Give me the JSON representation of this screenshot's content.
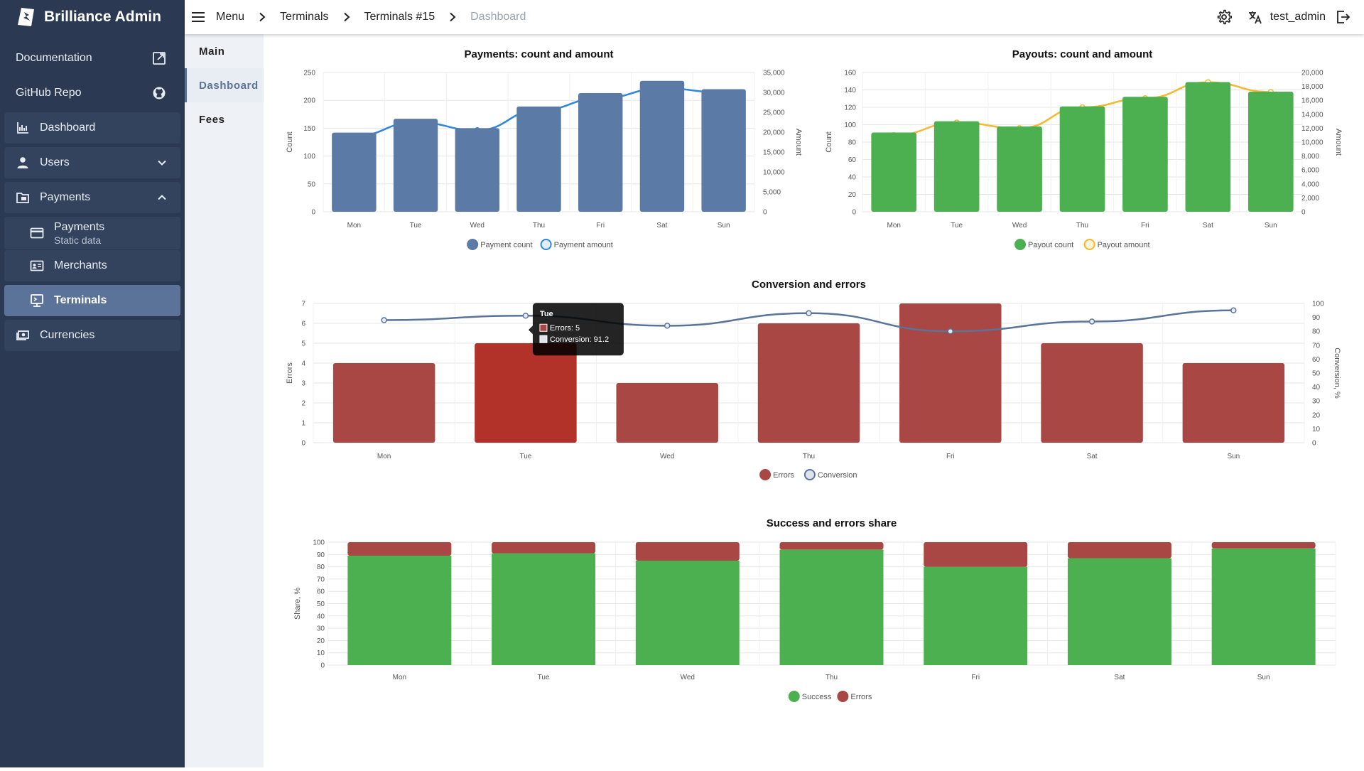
{
  "brand": {
    "name": "Brilliance Admin"
  },
  "sidebar": {
    "items": [
      {
        "label": "Documentation",
        "icon": "external-link-icon"
      },
      {
        "label": "GitHub Repo",
        "icon": "github-icon"
      },
      {
        "label": "Dashboard",
        "icon": "chart-icon"
      },
      {
        "label": "Users",
        "icon": "user-icon"
      },
      {
        "label": "Payments",
        "icon": "folder-icon"
      }
    ],
    "payments_sub": [
      {
        "label": "Payments",
        "sublabel": "Static data",
        "icon": "card-icon"
      },
      {
        "label": "Merchants",
        "icon": "id-card-icon"
      },
      {
        "label": "Terminals",
        "icon": "terminal-icon"
      }
    ],
    "currencies": {
      "label": "Currencies",
      "icon": "money-icon"
    }
  },
  "topbar": {
    "menu_label": "Menu",
    "crumbs": [
      "Terminals",
      "Terminals #15",
      "Dashboard"
    ],
    "user": "test_admin"
  },
  "subnav": {
    "items": [
      "Main",
      "Dashboard",
      "Fees"
    ],
    "active": "Dashboard"
  },
  "colors": {
    "blue_bar": "#5b7ba6",
    "blue_line": "#2e86de",
    "green": "#4caf50",
    "yellow": "#f5b82e",
    "red": "#a84743",
    "red_active": "#b23128",
    "line_conv": "#5a7398"
  },
  "chart_data": [
    {
      "id": "payments",
      "type": "bar",
      "title": "Payments: count and amount",
      "categories": [
        "Mon",
        "Tue",
        "Wed",
        "Thu",
        "Fri",
        "Sat",
        "Sun"
      ],
      "series": [
        {
          "name": "Payment count",
          "type": "bar",
          "axis": "left",
          "values": [
            142,
            167,
            150,
            189,
            213,
            235,
            220
          ]
        },
        {
          "name": "Payment amount",
          "type": "line",
          "axis": "right",
          "values": [
            19000,
            22500,
            20500,
            25500,
            28500,
            31000,
            30000
          ]
        }
      ],
      "ylabel": "Count",
      "ylim": [
        0,
        250
      ],
      "yticks": [
        0,
        50,
        100,
        150,
        200,
        250
      ],
      "y2label": "Amount",
      "y2lim": [
        0,
        35000
      ],
      "y2ticks": [
        0,
        5000,
        10000,
        15000,
        20000,
        25000,
        30000,
        35000
      ],
      "y2tick_labels": [
        "0",
        "5,000",
        "10,000",
        "15,000",
        "20,000",
        "25,000",
        "30,000",
        "35,000"
      ],
      "legend_position": "bottom"
    },
    {
      "id": "payouts",
      "type": "bar",
      "title": "Payouts: count and amount",
      "categories": [
        "Mon",
        "Tue",
        "Wed",
        "Thu",
        "Fri",
        "Sat",
        "Sun"
      ],
      "series": [
        {
          "name": "Payout count",
          "type": "bar",
          "axis": "left",
          "values": [
            91,
            104,
            98,
            121,
            132,
            149,
            138
          ]
        },
        {
          "name": "Payout amount",
          "type": "line",
          "axis": "right",
          "values": [
            11000,
            12800,
            12000,
            15000,
            16300,
            18600,
            17200
          ]
        }
      ],
      "ylabel": "Count",
      "ylim": [
        0,
        160
      ],
      "yticks": [
        0,
        20,
        40,
        60,
        80,
        100,
        120,
        140,
        160
      ],
      "y2label": "Amount",
      "y2lim": [
        0,
        20000
      ],
      "y2ticks": [
        0,
        2000,
        4000,
        6000,
        8000,
        10000,
        12000,
        14000,
        16000,
        18000,
        20000
      ],
      "y2tick_labels": [
        "0",
        "2,000",
        "4,000",
        "6,000",
        "8,000",
        "10,000",
        "12,000",
        "14,000",
        "16,000",
        "18,000",
        "20,000"
      ],
      "legend_position": "bottom"
    },
    {
      "id": "conversion",
      "type": "bar",
      "title": "Conversion and errors",
      "categories": [
        "Mon",
        "Tue",
        "Wed",
        "Thu",
        "Fri",
        "Sat",
        "Sun"
      ],
      "series": [
        {
          "name": "Errors",
          "type": "bar",
          "axis": "left",
          "values": [
            4,
            5,
            3,
            6,
            7,
            5,
            4
          ]
        },
        {
          "name": "Conversion",
          "type": "line",
          "axis": "right",
          "values": [
            88,
            91.2,
            84,
            93,
            80,
            87,
            95
          ]
        }
      ],
      "ylabel": "Errors",
      "ylim": [
        0,
        7
      ],
      "yticks": [
        0,
        1,
        2,
        3,
        4,
        5,
        6,
        7
      ],
      "y2label": "Conversion, %",
      "y2lim": [
        0,
        100
      ],
      "y2ticks": [
        0,
        10,
        20,
        30,
        40,
        50,
        60,
        70,
        80,
        90,
        100
      ],
      "legend_position": "bottom",
      "tooltip": {
        "category": "Tue",
        "lines": [
          "Errors: 5",
          "Conversion: 91.2"
        ]
      }
    },
    {
      "id": "share",
      "type": "bar",
      "stacked": true,
      "title": "Success and errors share",
      "categories": [
        "Mon",
        "Tue",
        "Wed",
        "Thu",
        "Fri",
        "Sat",
        "Sun"
      ],
      "series": [
        {
          "name": "Success",
          "values": [
            89,
            91,
            85,
            94,
            80,
            87,
            95
          ]
        },
        {
          "name": "Errors",
          "values": [
            11,
            9,
            15,
            6,
            20,
            13,
            5
          ]
        }
      ],
      "ylabel": "Share, %",
      "ylim": [
        0,
        100
      ],
      "yticks": [
        0,
        10,
        20,
        30,
        40,
        50,
        60,
        70,
        80,
        90,
        100
      ],
      "legend_position": "bottom"
    }
  ]
}
